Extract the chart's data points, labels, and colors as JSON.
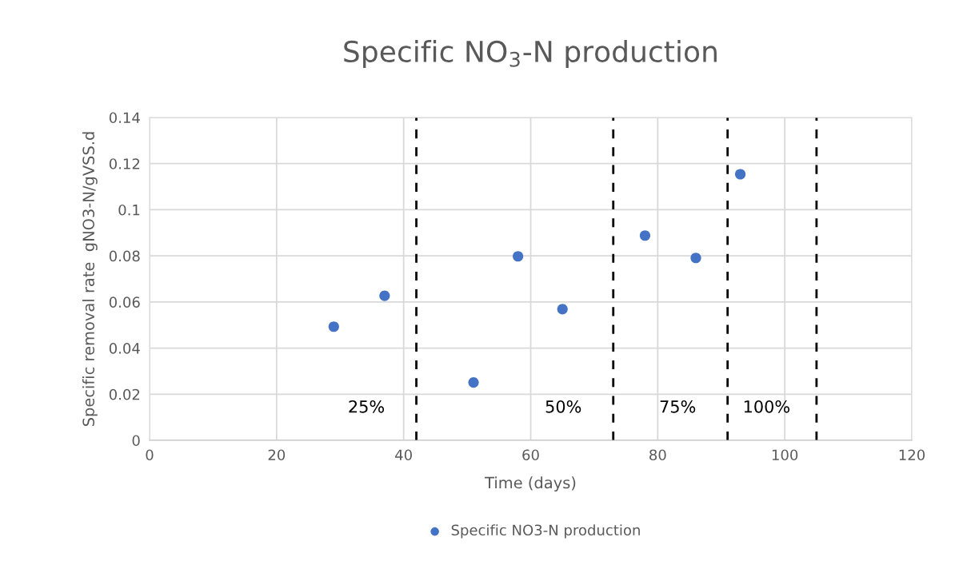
{
  "chart_data": {
    "type": "scatter",
    "title": "Specific NO$_{3}$-N production",
    "xlabel": "Time (days)",
    "ylabel": "Specific removal rate  gNO3-N/gVSS.d",
    "x": [
      29,
      37,
      51,
      58,
      65,
      78,
      86,
      93
    ],
    "series": [
      {
        "name": "Specific NO3-N production",
        "color": "#4472c4",
        "values": [
          0.0493,
          0.0627,
          0.0251,
          0.0798,
          0.0569,
          0.0888,
          0.0791,
          0.1154
        ]
      }
    ],
    "xlim": [
      0,
      120
    ],
    "xticks": [
      0,
      20,
      40,
      60,
      80,
      100,
      120
    ],
    "ylim": [
      0,
      0.14
    ],
    "yticks": [
      0,
      0.02,
      0.04,
      0.06,
      0.08,
      0.1,
      0.12,
      0.14
    ],
    "ref_lines": [
      {
        "axis": "x",
        "value": 42,
        "color": "#000000",
        "line_style": "dashed"
      },
      {
        "axis": "x",
        "value": 73,
        "color": "#000000",
        "line_style": "dashed"
      },
      {
        "axis": "x",
        "value": 91,
        "color": "#000000",
        "line_style": "dashed"
      },
      {
        "axis": "x",
        "value": 105,
        "color": "#000000",
        "line_style": "dashed"
      }
    ],
    "annotations": [
      "25%",
      "50%",
      "75%",
      "100%"
    ],
    "grid": true,
    "legend": "bottom",
    "marker": "circle"
  }
}
